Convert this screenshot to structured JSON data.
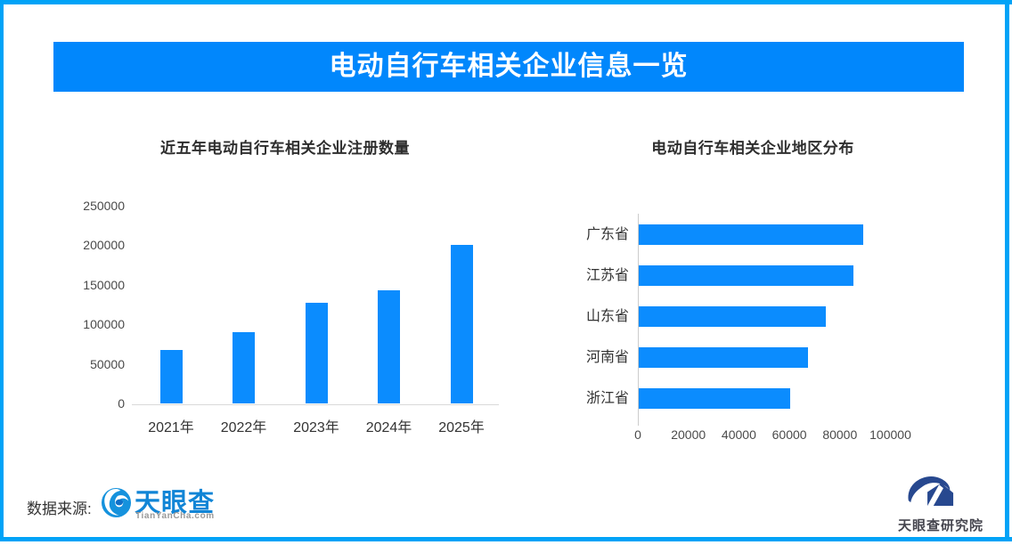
{
  "banner": {
    "title": "电动自行车相关企业信息一览"
  },
  "colors": {
    "accent_blue": "#0187FC",
    "frame_blue": "#01A3F7",
    "bar_blue": "#0B8CFE",
    "tyc_blue": "#1185D6",
    "research_navy": "#27488F"
  },
  "chart_data": [
    {
      "type": "bar",
      "orientation": "vertical",
      "title": "近五年电动自行车相关企业注册数量",
      "categories": [
        "2021年",
        "2022年",
        "2023年",
        "2024年",
        "2025年"
      ],
      "values": [
        68000,
        90000,
        127000,
        143000,
        200000
      ],
      "xlabel": "",
      "ylabel": "",
      "ylim": [
        0,
        250000
      ],
      "yticks": [
        0,
        50000,
        100000,
        150000,
        200000,
        250000
      ],
      "grid": false,
      "legend": "none"
    },
    {
      "type": "bar",
      "orientation": "horizontal",
      "title": "电动自行车相关企业地区分布",
      "categories": [
        "广东省",
        "江苏省",
        "山东省",
        "河南省",
        "浙江省"
      ],
      "values": [
        89000,
        85000,
        74000,
        67000,
        60000
      ],
      "xlabel": "",
      "ylabel": "",
      "xlim": [
        0,
        100000
      ],
      "xticks": [
        0,
        20000,
        40000,
        60000,
        80000,
        100000
      ],
      "grid": false,
      "legend": "none"
    }
  ],
  "footer": {
    "source_label": "数据来源:",
    "tianyancha": {
      "name": "天眼查",
      "domain": "TianYanCha.com"
    },
    "research": {
      "label": "天眼查研究院"
    }
  },
  "icons": {
    "footer_logo": "tianyancha-eye-icon",
    "research_logo": "tianyancha-research-icon"
  }
}
